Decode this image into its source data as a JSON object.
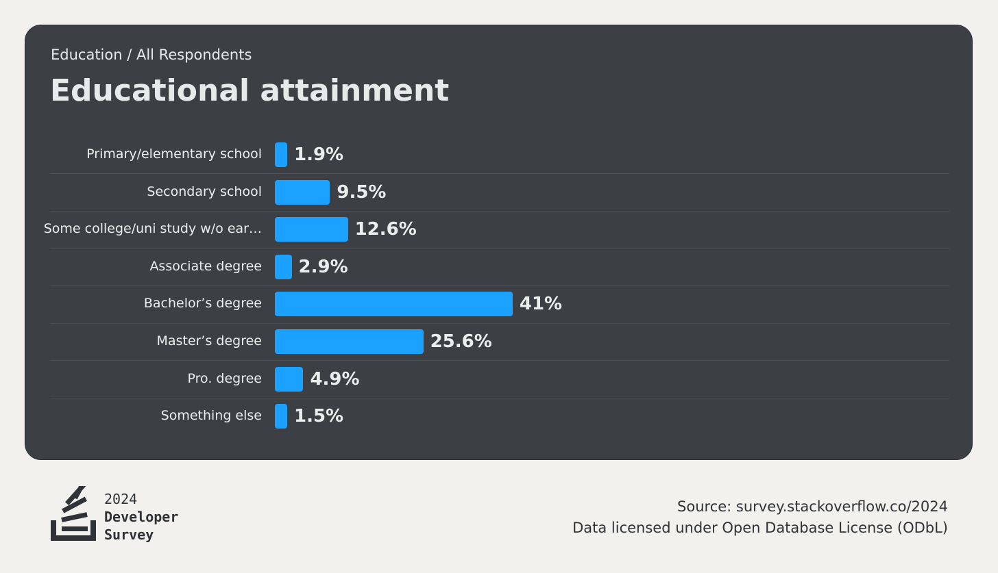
{
  "header": {
    "breadcrumb": "Education / All Respondents",
    "title": "Educational attainment"
  },
  "chart_data": {
    "type": "bar",
    "orientation": "horizontal",
    "title": "Educational attainment",
    "categories": [
      "Primary/elementary school",
      "Secondary school",
      "Some college/uni study w/o ear…",
      "Associate degree",
      "Bachelor’s degree",
      "Master’s degree",
      "Pro. degree",
      "Something else"
    ],
    "values": [
      1.9,
      9.5,
      12.6,
      2.9,
      41,
      25.6,
      4.9,
      1.5
    ],
    "value_labels": [
      "1.9%",
      "9.5%",
      "12.6%",
      "2.9%",
      "41%",
      "25.6%",
      "4.9%",
      "1.5%"
    ],
    "unit": "%",
    "xlim": [
      0,
      100
    ],
    "grid": false,
    "bar_color": "#1ba1ff"
  },
  "footer": {
    "logo_year": "2024",
    "logo_line1": "Developer",
    "logo_line2": "Survey",
    "source": "Source: survey.stackoverflow.co/2024",
    "license": "Data licensed under Open Database License (ODbL)"
  },
  "colors": {
    "page_bg": "#f2f1ed",
    "card_bg": "#3c4045",
    "bar": "#1ba1ff",
    "text_light": "#eceded",
    "text_dark": "#2f3337"
  }
}
